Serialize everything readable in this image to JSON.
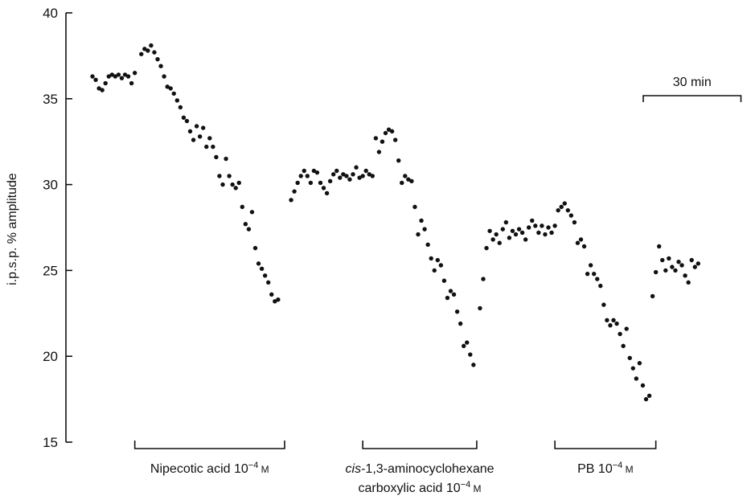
{
  "chart_data": {
    "type": "scatter",
    "title": "",
    "xlabel": "",
    "ylabel": "i.p.s.p. % amplitude",
    "ylim": [
      15,
      40
    ],
    "y_ticks": [
      15,
      20,
      25,
      30,
      35,
      40
    ],
    "x_unit": "min",
    "scale_bar": {
      "label": "30 min",
      "minutes": 30
    },
    "grid": false,
    "legend": "none",
    "marker_color": "#111111",
    "series": [
      {
        "values": [
          [
            0,
            36.3
          ],
          [
            1,
            36.1
          ],
          [
            2,
            35.6
          ],
          [
            3,
            35.5
          ],
          [
            4,
            35.9
          ],
          [
            5,
            36.3
          ],
          [
            6,
            36.4
          ],
          [
            7,
            36.3
          ],
          [
            8,
            36.4
          ],
          [
            9,
            36.2
          ],
          [
            10,
            36.4
          ],
          [
            11,
            36.3
          ],
          [
            12,
            35.9
          ],
          [
            13,
            36.5
          ],
          [
            15,
            37.6
          ],
          [
            16,
            37.9
          ],
          [
            17,
            37.8
          ],
          [
            18,
            38.1
          ],
          [
            19,
            37.7
          ],
          [
            20,
            37.3
          ],
          [
            21,
            36.9
          ],
          [
            22,
            36.3
          ],
          [
            23,
            35.7
          ],
          [
            24,
            35.6
          ],
          [
            25,
            35.3
          ],
          [
            26,
            34.9
          ],
          [
            27,
            34.5
          ],
          [
            28,
            33.9
          ],
          [
            29,
            33.7
          ],
          [
            30,
            33.1
          ],
          [
            31,
            32.6
          ],
          [
            32,
            33.4
          ],
          [
            33,
            32.8
          ],
          [
            34,
            33.3
          ],
          [
            35,
            32.2
          ],
          [
            36,
            32.7
          ],
          [
            37,
            32.2
          ],
          [
            38,
            31.6
          ],
          [
            39,
            30.5
          ],
          [
            40,
            30.0
          ],
          [
            41,
            31.5
          ],
          [
            42,
            30.5
          ],
          [
            43,
            30.0
          ],
          [
            44,
            29.8
          ],
          [
            45,
            30.1
          ],
          [
            46,
            28.7
          ],
          [
            47,
            27.7
          ],
          [
            48,
            27.4
          ],
          [
            49,
            28.4
          ],
          [
            50,
            26.3
          ],
          [
            51,
            25.4
          ],
          [
            52,
            25.1
          ],
          [
            53,
            24.7
          ],
          [
            54,
            24.3
          ],
          [
            55,
            23.6
          ],
          [
            56,
            23.2
          ],
          [
            57,
            23.3
          ],
          [
            61,
            29.1
          ],
          [
            62,
            29.6
          ],
          [
            63,
            30.1
          ],
          [
            64,
            30.5
          ],
          [
            65,
            30.8
          ],
          [
            66,
            30.5
          ],
          [
            67,
            30.1
          ],
          [
            68,
            30.8
          ],
          [
            69,
            30.7
          ],
          [
            70,
            30.1
          ],
          [
            71,
            29.8
          ],
          [
            72,
            29.5
          ],
          [
            73,
            30.2
          ],
          [
            74,
            30.6
          ],
          [
            75,
            30.8
          ],
          [
            76,
            30.4
          ],
          [
            77,
            30.6
          ],
          [
            78,
            30.5
          ],
          [
            79,
            30.3
          ],
          [
            80,
            30.6
          ],
          [
            81,
            31.0
          ],
          [
            82,
            30.4
          ],
          [
            83,
            30.5
          ],
          [
            84,
            30.8
          ],
          [
            85,
            30.6
          ],
          [
            86,
            30.5
          ],
          [
            87,
            32.7
          ],
          [
            88,
            31.9
          ],
          [
            89,
            32.5
          ],
          [
            90,
            33.0
          ],
          [
            91,
            33.2
          ],
          [
            92,
            33.1
          ],
          [
            93,
            32.6
          ],
          [
            94,
            31.4
          ],
          [
            95,
            30.1
          ],
          [
            96,
            30.5
          ],
          [
            97,
            30.3
          ],
          [
            98,
            30.2
          ],
          [
            99,
            28.7
          ],
          [
            100,
            27.1
          ],
          [
            101,
            27.9
          ],
          [
            102,
            27.4
          ],
          [
            103,
            26.5
          ],
          [
            104,
            25.7
          ],
          [
            105,
            25.0
          ],
          [
            106,
            25.6
          ],
          [
            107,
            25.3
          ],
          [
            108,
            24.4
          ],
          [
            109,
            23.4
          ],
          [
            110,
            23.8
          ],
          [
            111,
            23.6
          ],
          [
            112,
            22.6
          ],
          [
            113,
            21.9
          ],
          [
            114,
            20.6
          ],
          [
            115,
            20.8
          ],
          [
            116,
            20.1
          ],
          [
            117,
            19.5
          ],
          [
            119,
            22.8
          ],
          [
            120,
            24.5
          ],
          [
            121,
            26.3
          ],
          [
            122,
            27.3
          ],
          [
            123,
            26.8
          ],
          [
            124,
            27.1
          ],
          [
            125,
            26.6
          ],
          [
            126,
            27.4
          ],
          [
            127,
            27.8
          ],
          [
            128,
            26.9
          ],
          [
            129,
            27.3
          ],
          [
            130,
            27.1
          ],
          [
            131,
            27.4
          ],
          [
            132,
            27.2
          ],
          [
            133,
            26.8
          ],
          [
            134,
            27.5
          ],
          [
            135,
            27.9
          ],
          [
            136,
            27.6
          ],
          [
            137,
            27.2
          ],
          [
            138,
            27.6
          ],
          [
            139,
            27.1
          ],
          [
            140,
            27.5
          ],
          [
            141,
            27.2
          ],
          [
            142,
            27.6
          ],
          [
            143,
            28.5
          ],
          [
            144,
            28.7
          ],
          [
            145,
            28.9
          ],
          [
            146,
            28.5
          ],
          [
            147,
            28.2
          ],
          [
            148,
            27.8
          ],
          [
            149,
            26.6
          ],
          [
            150,
            26.8
          ],
          [
            151,
            26.4
          ],
          [
            152,
            24.8
          ],
          [
            153,
            25.3
          ],
          [
            154,
            24.8
          ],
          [
            155,
            24.5
          ],
          [
            156,
            24.1
          ],
          [
            157,
            23.0
          ],
          [
            158,
            22.1
          ],
          [
            159,
            21.8
          ],
          [
            160,
            22.1
          ],
          [
            161,
            21.9
          ],
          [
            162,
            21.3
          ],
          [
            163,
            20.6
          ],
          [
            164,
            21.6
          ],
          [
            165,
            19.9
          ],
          [
            166,
            19.3
          ],
          [
            167,
            18.7
          ],
          [
            168,
            19.6
          ],
          [
            169,
            18.3
          ],
          [
            170,
            17.5
          ],
          [
            171,
            17.7
          ],
          [
            172,
            23.5
          ],
          [
            173,
            24.9
          ],
          [
            174,
            26.4
          ],
          [
            175,
            25.6
          ],
          [
            176,
            25.0
          ],
          [
            177,
            25.7
          ],
          [
            178,
            25.2
          ],
          [
            179,
            25.0
          ],
          [
            180,
            25.5
          ],
          [
            181,
            25.3
          ],
          [
            182,
            24.7
          ],
          [
            183,
            24.3
          ],
          [
            184,
            25.6
          ],
          [
            185,
            25.2
          ],
          [
            186,
            25.4
          ]
        ]
      }
    ],
    "annotations": [
      {
        "id": "nipecotic",
        "lines": [
          [
            "Nipecotic acid 10",
            "−4",
            " M"
          ]
        ],
        "x_start": 13,
        "x_end": 59
      },
      {
        "id": "cis",
        "lines": [
          [
            "cis",
            "-1,3-aminocyclohexane"
          ],
          [
            "carboxylic acid 10",
            "−4",
            " M"
          ]
        ],
        "x_start": 83,
        "x_end": 118
      },
      {
        "id": "pb",
        "lines": [
          [
            "PB 10",
            "−4",
            " M"
          ]
        ],
        "x_start": 142,
        "x_end": 173
      }
    ]
  }
}
